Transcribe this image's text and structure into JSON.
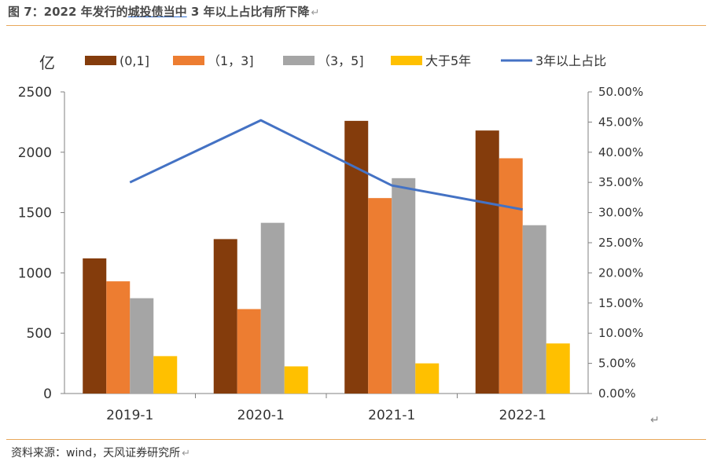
{
  "header": {
    "title_pre": "图 7：2022 年发行的",
    "title_underlined": "城投债当中",
    "title_post": " 3 年以上占比有所下降",
    "return_mark": "↵"
  },
  "footer": {
    "source": "资料来源：wind，天风证券研究所",
    "return_mark": "↵",
    "end_mark": "↵"
  },
  "chart_data": {
    "type": "bar",
    "title": "2022 年发行的城投债当中 3 年以上占比有所下降",
    "ylabel": "亿",
    "categories": [
      "2019-1",
      "2020-1",
      "2021-1",
      "2022-1"
    ],
    "ylim": [
      0,
      2500
    ],
    "yticks": [
      "0",
      "500",
      "1000",
      "1500",
      "2000",
      "2500"
    ],
    "y2lim": [
      0,
      50
    ],
    "y2ticks": [
      "0.00%",
      "5.00%",
      "10.00%",
      "15.00%",
      "20.00%",
      "25.00%",
      "30.00%",
      "35.00%",
      "40.00%",
      "45.00%",
      "50.00%"
    ],
    "series": [
      {
        "name": "(0,1]",
        "values": [
          1120,
          1280,
          2260,
          2180
        ],
        "color": "#843c0c",
        "axis": "left",
        "kind": "bar"
      },
      {
        "name": "（1，3]",
        "values": [
          930,
          700,
          1620,
          1950
        ],
        "color": "#ed7d31",
        "axis": "left",
        "kind": "bar"
      },
      {
        "name": "（3，5]",
        "values": [
          790,
          1415,
          1785,
          1395
        ],
        "color": "#a5a5a5",
        "axis": "left",
        "kind": "bar"
      },
      {
        "name": "大于5年",
        "values": [
          310,
          225,
          250,
          415
        ],
        "color": "#ffc000",
        "axis": "left",
        "kind": "bar"
      },
      {
        "name": "3年以上占比",
        "values": [
          35.0,
          45.3,
          34.5,
          30.5
        ],
        "color": "#4472c4",
        "axis": "right",
        "kind": "line"
      }
    ],
    "legend": "top",
    "grid": false
  }
}
